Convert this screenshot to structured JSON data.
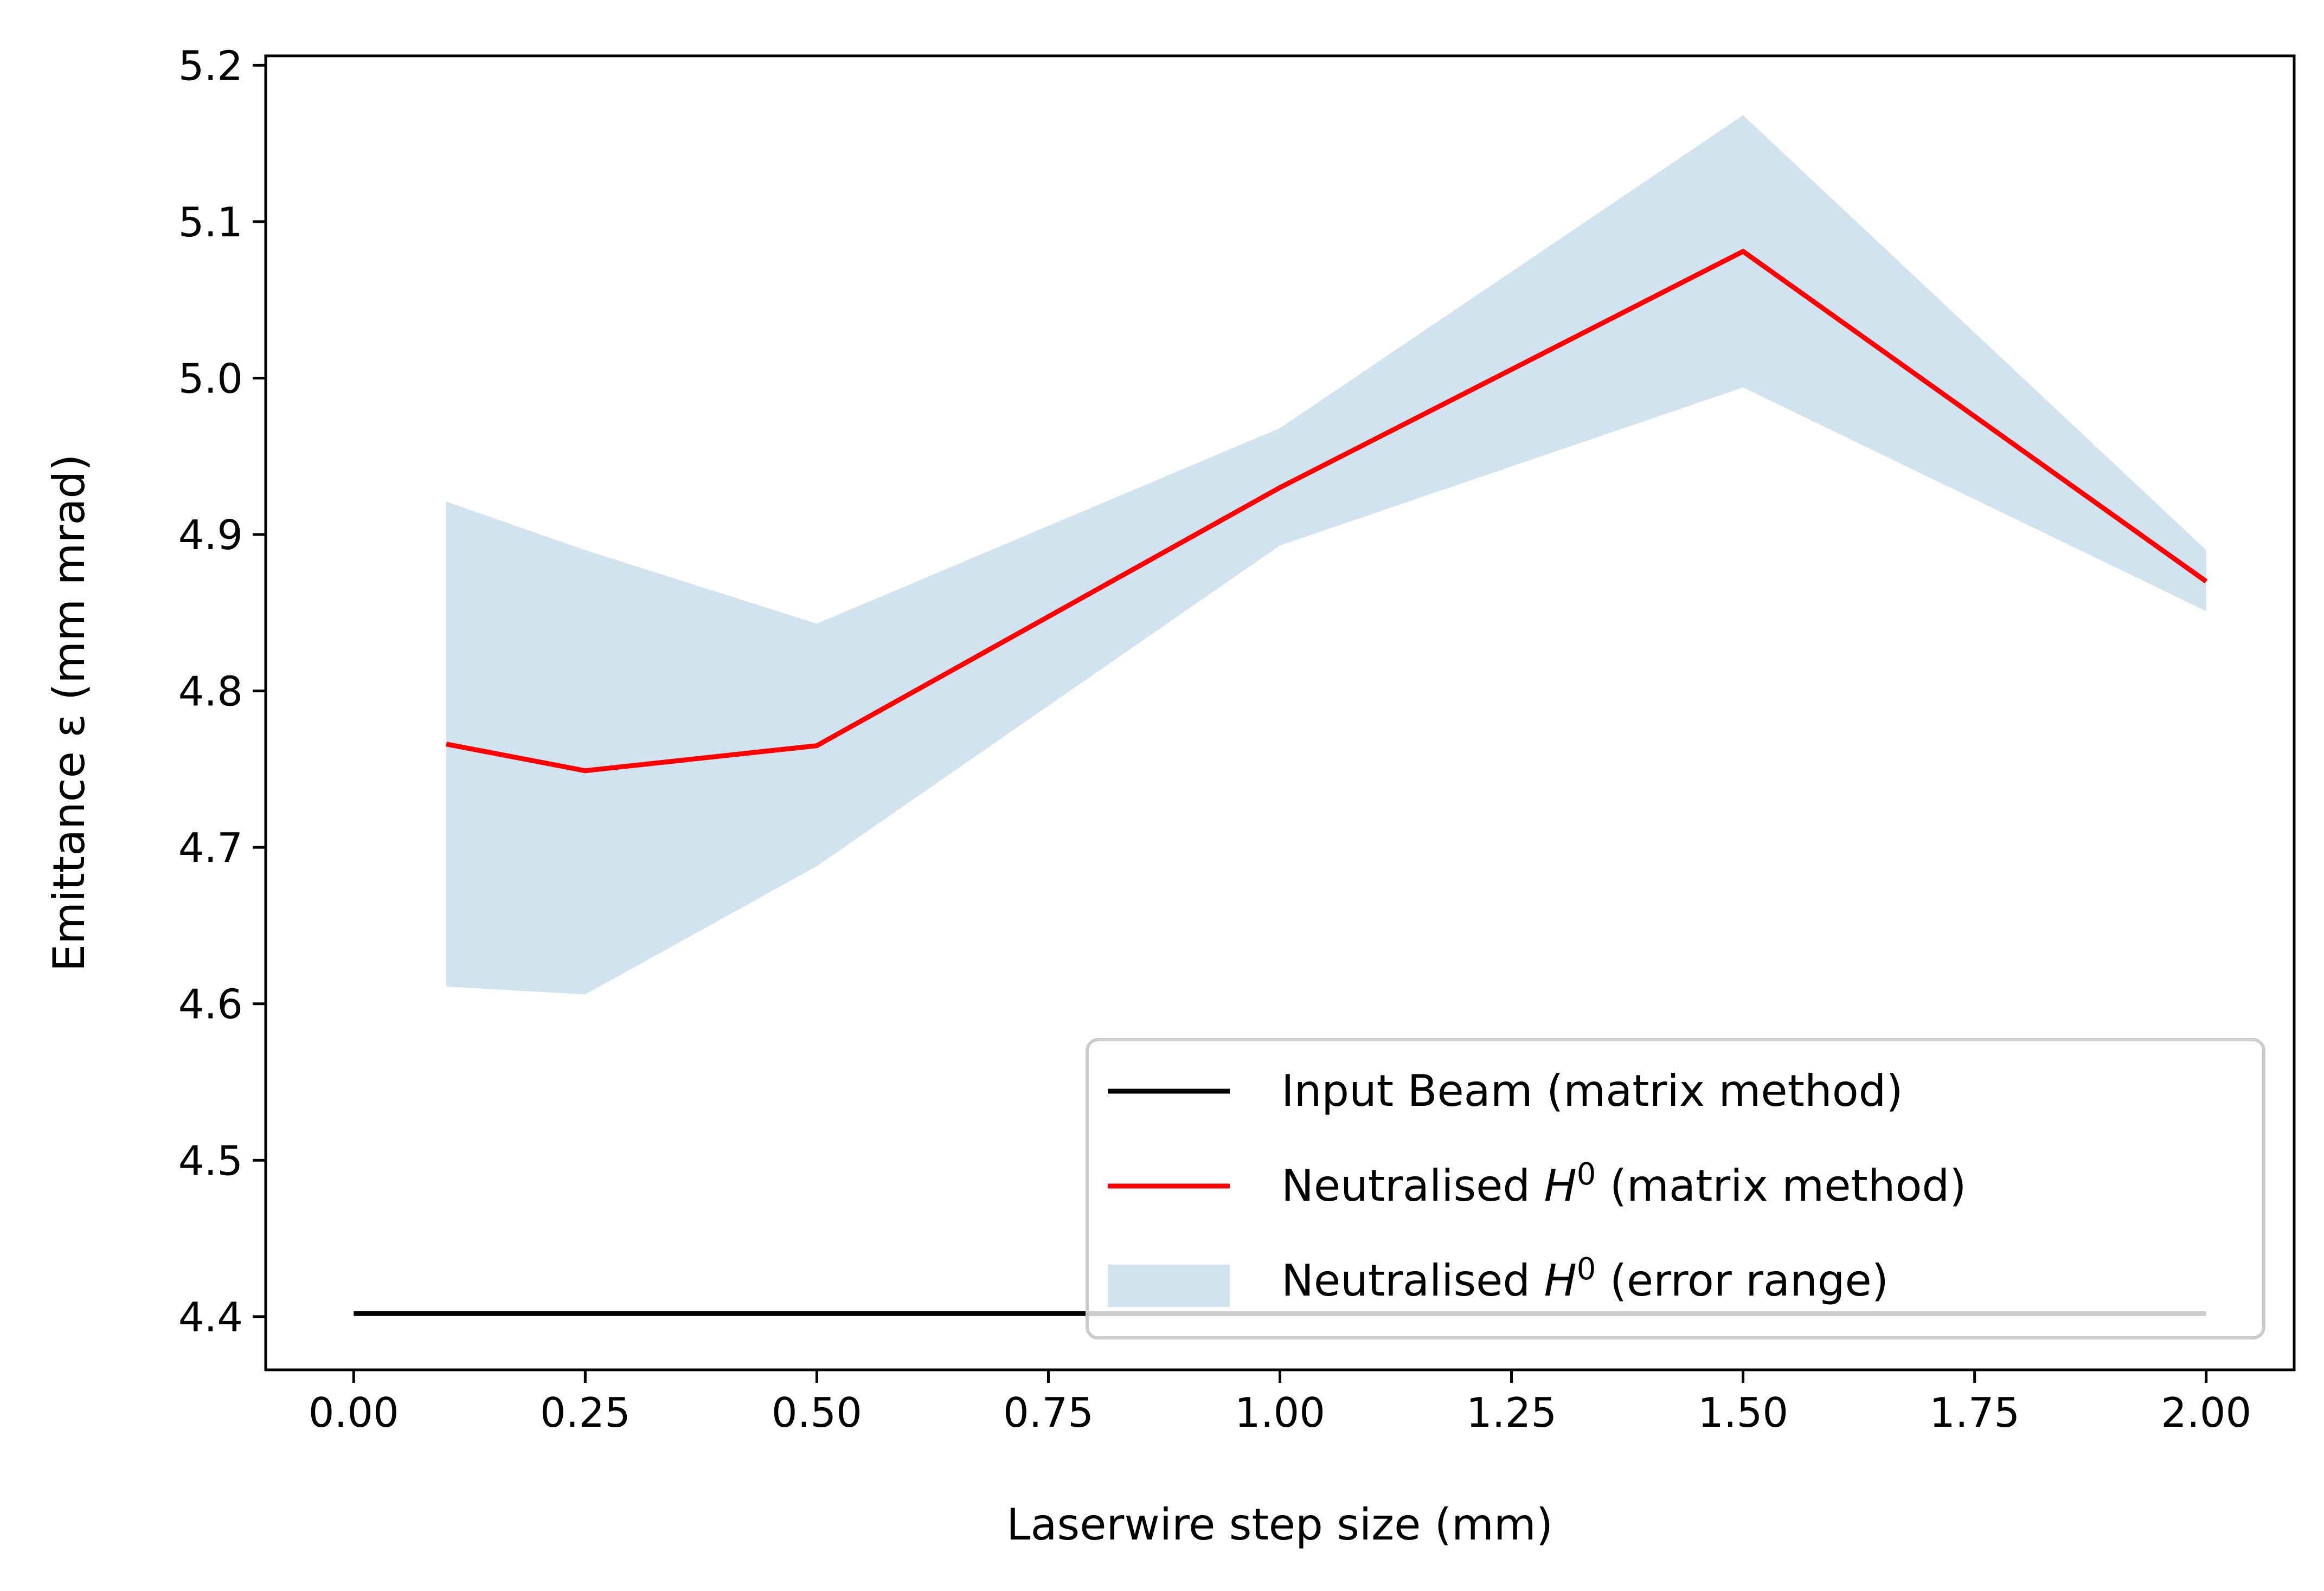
{
  "chart_data": {
    "type": "line",
    "title": "",
    "xlabel": "Laserwire step size (mm)",
    "ylabel": "Emittance ε (mm mrad)",
    "xlim": [
      -0.095,
      2.095
    ],
    "ylim": [
      4.366,
      5.206
    ],
    "xticks": [
      0.0,
      0.25,
      0.5,
      0.75,
      1.0,
      1.25,
      1.5,
      1.75,
      2.0
    ],
    "xtick_labels": [
      "0.00",
      "0.25",
      "0.50",
      "0.75",
      "1.00",
      "1.25",
      "1.50",
      "1.75",
      "2.00"
    ],
    "yticks": [
      4.4,
      4.5,
      4.6,
      4.7,
      4.8,
      4.9,
      5.0,
      5.1,
      5.2
    ],
    "ytick_labels": [
      "4.4",
      "4.5",
      "4.6",
      "4.7",
      "4.8",
      "4.9",
      "5.0",
      "5.1",
      "5.2"
    ],
    "grid": false,
    "legend_position": "lower right",
    "series": [
      {
        "name": "Input Beam (matrix method)",
        "kind": "line",
        "color": "#000000",
        "x": [
          0.0,
          2.0
        ],
        "y": [
          4.402,
          4.402
        ]
      },
      {
        "name": "Neutralised H^0 (matrix method)",
        "kind": "line",
        "color": "#ff0000",
        "x": [
          0.1,
          0.25,
          0.5,
          1.0,
          1.5,
          2.0
        ],
        "y": [
          4.766,
          4.749,
          4.765,
          4.93,
          5.081,
          4.87
        ]
      },
      {
        "name": "Neutralised H^0 (error range)",
        "kind": "band",
        "color": "#d1e3ef",
        "x": [
          0.1,
          0.25,
          0.5,
          1.0,
          1.5,
          2.0
        ],
        "lower": [
          4.611,
          4.606,
          4.688,
          4.893,
          4.994,
          4.851
        ],
        "upper": [
          4.921,
          4.89,
          4.843,
          4.968,
          5.168,
          4.89
        ]
      }
    ],
    "legend_labels": [
      {
        "pre": "Input Beam (matrix method)",
        "sym": "",
        "sup": "",
        "post": ""
      },
      {
        "pre": "Neutralised ",
        "sym": "H",
        "sup": "0",
        "post": " (matrix method)"
      },
      {
        "pre": "Neutralised ",
        "sym": "H",
        "sup": "0",
        "post": " (error range)"
      }
    ]
  }
}
